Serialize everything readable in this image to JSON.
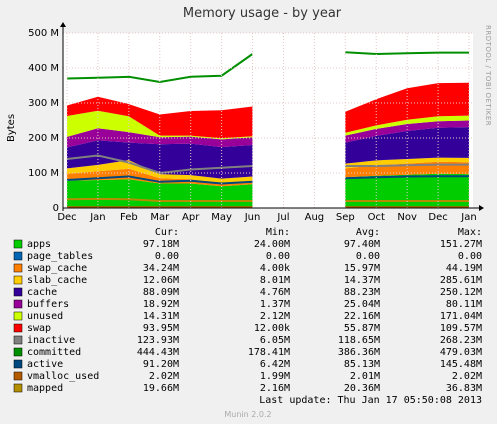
{
  "chart_data": {
    "type": "area",
    "title": "Memory usage - by year",
    "ylabel": "Bytes",
    "ylim": [
      0,
      500000000
    ],
    "yticks": [
      "0",
      "100 M",
      "200 M",
      "300 M",
      "400 M",
      "500 M"
    ],
    "xticks": [
      "Dec",
      "Jan",
      "Feb",
      "Mar",
      "Apr",
      "May",
      "Jun",
      "Jul",
      "Aug",
      "Sep",
      "Oct",
      "Nov",
      "Dec",
      "Jan"
    ],
    "grid": true,
    "gap": [
      "Jul",
      "Sep"
    ],
    "series": [
      {
        "name": "apps",
        "color": "#00cc00",
        "stacked": true,
        "values": [
          78,
          80,
          82,
          70,
          70,
          62,
          68,
          null,
          null,
          88,
          92,
          95,
          98,
          97
        ]
      },
      {
        "name": "page_tables",
        "color": "#0066b3",
        "stacked": true,
        "values": [
          0,
          0,
          0,
          0,
          0,
          0,
          0,
          null,
          null,
          0,
          0,
          0,
          0,
          0
        ]
      },
      {
        "name": "swap_cache",
        "color": "#ff8000",
        "stacked": true,
        "values": [
          20,
          25,
          30,
          15,
          12,
          10,
          10,
          null,
          null,
          25,
          30,
          32,
          34,
          34
        ]
      },
      {
        "name": "slab_cache",
        "color": "#ffcc00",
        "stacked": true,
        "values": [
          15,
          18,
          25,
          12,
          12,
          12,
          12,
          null,
          null,
          14,
          14,
          13,
          12,
          12
        ]
      },
      {
        "name": "cache",
        "color": "#330099",
        "stacked": true,
        "values": [
          60,
          70,
          50,
          85,
          90,
          90,
          90,
          null,
          null,
          60,
          70,
          80,
          85,
          88
        ]
      },
      {
        "name": "buffers",
        "color": "#990099",
        "stacked": true,
        "values": [
          30,
          35,
          30,
          20,
          20,
          22,
          22,
          null,
          null,
          20,
          20,
          20,
          19,
          19
        ]
      },
      {
        "name": "unused",
        "color": "#ccff00",
        "stacked": true,
        "values": [
          60,
          50,
          45,
          5,
          3,
          3,
          3,
          null,
          null,
          8,
          10,
          12,
          14,
          14
        ]
      },
      {
        "name": "swap",
        "color": "#ff0000",
        "stacked": true,
        "values": [
          30,
          40,
          35,
          60,
          70,
          80,
          85,
          null,
          null,
          60,
          75,
          90,
          95,
          94
        ]
      },
      {
        "name": "inactive",
        "color": "#808080",
        "stacked": false,
        "values": [
          140,
          150,
          130,
          100,
          110,
          115,
          120,
          null,
          null,
          120,
          120,
          122,
          124,
          124
        ]
      },
      {
        "name": "committed",
        "color": "#008f00",
        "stacked": false,
        "values": [
          370,
          372,
          375,
          360,
          375,
          378,
          440,
          null,
          null,
          445,
          440,
          442,
          444,
          444
        ]
      },
      {
        "name": "active",
        "color": "#00487d",
        "stacked": false,
        "values": [
          80,
          85,
          90,
          75,
          78,
          70,
          75,
          null,
          null,
          85,
          88,
          90,
          91,
          91
        ]
      },
      {
        "name": "vmalloc_used",
        "color": "#b35a00",
        "stacked": false,
        "values": [
          2,
          2,
          2,
          2,
          2,
          2,
          2,
          null,
          null,
          2,
          2,
          2,
          2,
          2
        ]
      },
      {
        "name": "mapped",
        "color": "#b38f00",
        "stacked": false,
        "values": [
          25,
          26,
          25,
          20,
          20,
          20,
          20,
          null,
          null,
          20,
          20,
          20,
          20,
          20
        ]
      }
    ]
  },
  "legend": {
    "headers": [
      "Cur:",
      "Min:",
      "Avg:",
      "Max:"
    ],
    "rows": [
      {
        "name": "apps",
        "color": "#00cc00",
        "cur": "97.18M",
        "min": "24.00M",
        "avg": "97.40M",
        "max": "151.27M"
      },
      {
        "name": "page_tables",
        "color": "#0066b3",
        "cur": "0.00",
        "min": "0.00",
        "avg": "0.00",
        "max": "0.00"
      },
      {
        "name": "swap_cache",
        "color": "#ff8000",
        "cur": "34.24M",
        "min": "4.00k",
        "avg": "15.97M",
        "max": "44.19M"
      },
      {
        "name": "slab_cache",
        "color": "#ffcc00",
        "cur": "12.06M",
        "min": "8.01M",
        "avg": "14.37M",
        "max": "285.61M"
      },
      {
        "name": "cache",
        "color": "#330099",
        "cur": "88.09M",
        "min": "4.76M",
        "avg": "88.23M",
        "max": "250.12M"
      },
      {
        "name": "buffers",
        "color": "#990099",
        "cur": "18.92M",
        "min": "1.37M",
        "avg": "25.04M",
        "max": "80.11M"
      },
      {
        "name": "unused",
        "color": "#ccff00",
        "cur": "14.31M",
        "min": "2.12M",
        "avg": "22.16M",
        "max": "171.04M"
      },
      {
        "name": "swap",
        "color": "#ff0000",
        "cur": "93.95M",
        "min": "12.00k",
        "avg": "55.87M",
        "max": "109.57M"
      },
      {
        "name": "inactive",
        "color": "#808080",
        "cur": "123.93M",
        "min": "6.05M",
        "avg": "118.65M",
        "max": "268.23M"
      },
      {
        "name": "committed",
        "color": "#008f00",
        "cur": "444.43M",
        "min": "178.41M",
        "avg": "386.36M",
        "max": "479.03M"
      },
      {
        "name": "active",
        "color": "#00487d",
        "cur": "91.20M",
        "min": "6.42M",
        "avg": "85.13M",
        "max": "145.48M"
      },
      {
        "name": "vmalloc_used",
        "color": "#b35a00",
        "cur": "2.02M",
        "min": "1.99M",
        "avg": "2.01M",
        "max": "2.02M"
      },
      {
        "name": "mapped",
        "color": "#b38f00",
        "cur": "19.66M",
        "min": "2.16M",
        "avg": "20.36M",
        "max": "36.83M"
      }
    ]
  },
  "last_update": "Last update:  Thu Jan 17 05:50:08 2013",
  "side_text": "RRDTOOL / TOBI OETIKER",
  "footer": "Munin 2.0.2"
}
